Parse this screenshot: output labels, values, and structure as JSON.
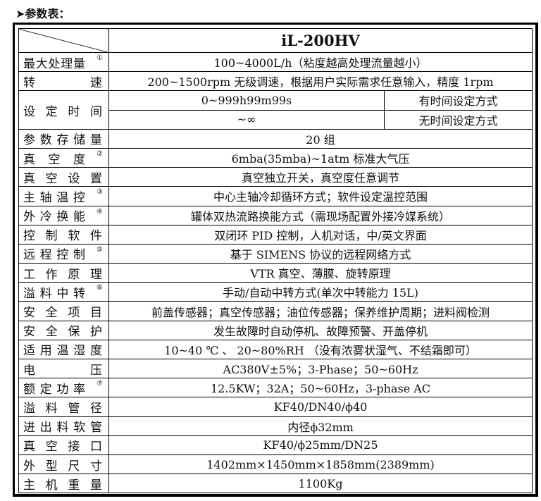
{
  "heading": "➤参数表：",
  "model": "iL-200HV",
  "rows": [
    {
      "label": "最大处理量",
      "sup": "①",
      "value": "100~4000L/h（粘度越高处理流量越小）"
    },
    {
      "label": "转速",
      "value": "200~1500rpm 无级调速，根据用户实际需求任意输入，精度 1rpm"
    },
    {
      "label": "设定时间",
      "sub": [
        {
          "value": "0~999h99m99s",
          "note": "有时间设定方式"
        },
        {
          "value": "~∞",
          "note": "无时间设定方式"
        }
      ]
    },
    {
      "label": "参数存储量",
      "value": "20 组"
    },
    {
      "label": "真空度",
      "sup": "②",
      "value": "6mba(35mba)~1atm 标准大气压"
    },
    {
      "label": "真空设置",
      "value": "真空独立开关，真空度任意调节"
    },
    {
      "label": "主轴温控",
      "sup": "③",
      "value": "中心主轴冷却循环方式；软件设定温控范围"
    },
    {
      "label": "外冷换能",
      "sup": "④",
      "value": "罐体双热流路换能方式（需现场配置外接冷媒系统）"
    },
    {
      "label": "控制软件",
      "value": "双闭环 PID 控制，人机对话，中/英文界面"
    },
    {
      "label": "远程控制",
      "sup": "⑤",
      "value": "基于 SIMENS 协议的远程网络方式"
    },
    {
      "label": "工作原理",
      "value": "VTR 真空、薄膜、旋转原理"
    },
    {
      "label": "溢料中转",
      "sup": "⑥",
      "value": "手动/自动中转方式(单次中转能力 15L)"
    },
    {
      "label": "安全项目",
      "value": "前盖传感器；真空传感器；油位传感器；保养维护周期；进料阀检测"
    },
    {
      "label": "安全保护",
      "value": "发生故障时自动停机、故障预警、开盖停机"
    },
    {
      "label": "适用温湿度",
      "value": "10~40 ℃ 、 20~80%RH （没有浓雾状湿气、不结霜即可）"
    },
    {
      "label": "电压",
      "value": "AC380V±5%；3-Phase；50~60Hz"
    },
    {
      "label": "额定功率",
      "sup": "⑦",
      "value": "12.5KW；32A；50~60Hz，3-phase AC"
    },
    {
      "label": "溢料管径",
      "value": "KF40/DN40/ϕ40"
    },
    {
      "label": "进出料软管",
      "value": "内径ϕ32mm"
    },
    {
      "label": "真空接口",
      "value": "KF40/ϕ25mm/DN25"
    },
    {
      "label": "外型尺寸",
      "value": "1402mm×1450mm×1858mm(2389mm)"
    },
    {
      "label": "主机重量",
      "value": "1100Kg"
    }
  ]
}
